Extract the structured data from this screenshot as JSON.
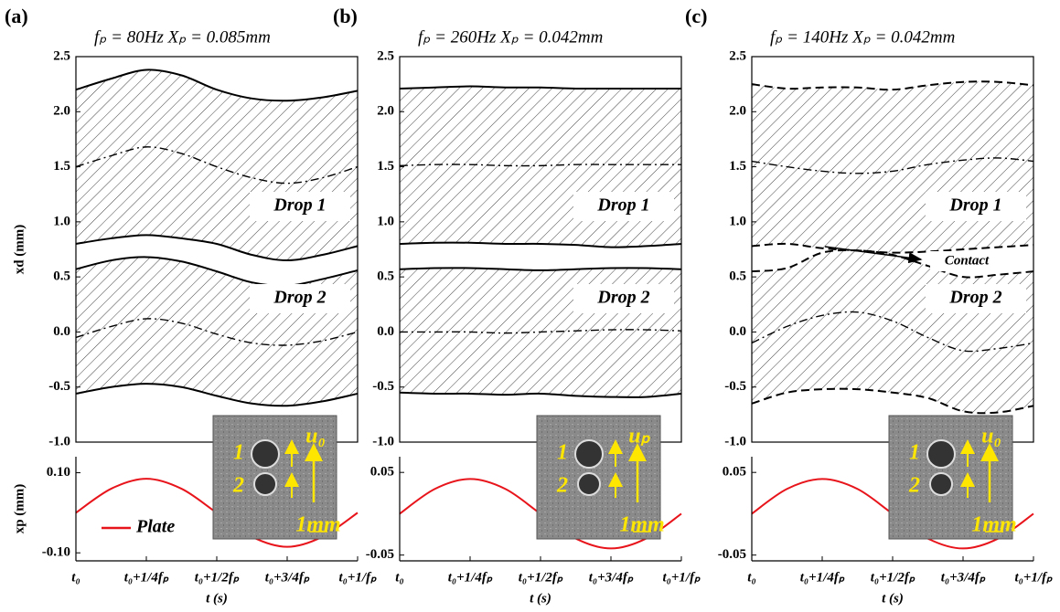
{
  "chart_data": [
    {
      "type": "line",
      "panel_label": "(a)",
      "title": "fₚ = 80Hz  Xₚ = 0.085mm",
      "y_label": "xd (mm)",
      "x": [
        0,
        0.125,
        0.25,
        0.375,
        0.5,
        0.625,
        0.75,
        0.875,
        1
      ],
      "xlim": [
        0,
        1
      ],
      "ylim": [
        -1,
        2.5
      ],
      "yticks": [
        {
          "value": -1,
          "label": "-1.0"
        },
        -0.5,
        {
          "value": 0,
          "label": "0.0"
        },
        0.5,
        {
          "value": 1,
          "label": "1.0"
        },
        1.5,
        {
          "value": 2,
          "label": "2.0"
        },
        2.5
      ],
      "hatch": true,
      "series": [
        {
          "color": "#000000",
          "style": "solid",
          "values": [
            2.2,
            2.3,
            2.38,
            2.33,
            2.2,
            2.12,
            2.1,
            2.13,
            2.19
          ]
        },
        {
          "color": "#000000",
          "style": "dashdot",
          "values": [
            1.5,
            1.6,
            1.68,
            1.62,
            1.5,
            1.4,
            1.35,
            1.4,
            1.5
          ]
        },
        {
          "color": "#000000",
          "style": "solid",
          "values": [
            0.8,
            0.85,
            0.88,
            0.85,
            0.8,
            0.7,
            0.65,
            0.7,
            0.78
          ]
        },
        {
          "color": "#000000",
          "style": "solid",
          "values": [
            0.57,
            0.65,
            0.68,
            0.64,
            0.55,
            0.45,
            0.42,
            0.48,
            0.56
          ]
        },
        {
          "color": "#000000",
          "style": "dashdot",
          "values": [
            -0.05,
            0.05,
            0.12,
            0.08,
            -0.02,
            -0.1,
            -0.12,
            -0.08,
            0.0
          ]
        },
        {
          "color": "#000000",
          "style": "solid",
          "values": [
            -0.56,
            -0.5,
            -0.47,
            -0.5,
            -0.58,
            -0.65,
            -0.67,
            -0.63,
            -0.56
          ]
        }
      ],
      "annotations": [
        "Drop 1",
        "Drop 2"
      ],
      "inset_labels": [
        "1",
        "2",
        "u₀",
        "1mm"
      ]
    },
    {
      "type": "line",
      "y_label": "xp (mm)",
      "x_label": "t (s)",
      "x": [
        0,
        0.125,
        0.25,
        0.375,
        0.5,
        0.625,
        0.75,
        0.875,
        1
      ],
      "xlim": [
        0,
        1
      ],
      "ylim": [
        -0.12,
        0.14
      ],
      "yticks": [
        {
          "value": 0.1,
          "label": "0.10"
        },
        {
          "value": -0.1,
          "label": "-0.10"
        }
      ],
      "xticks": [
        {
          "value": 0,
          "label": "t₀"
        },
        {
          "value": 0.25,
          "label": "t₀+1/4fₚ"
        },
        {
          "value": 0.5,
          "label": "t₀+1/2fₚ"
        },
        {
          "value": 0.75,
          "label": "t₀+3/4fₚ"
        },
        {
          "value": 1,
          "label": "t₀+1/fₚ"
        }
      ],
      "legend": true,
      "series": [
        {
          "name": "Plate",
          "color": "#e8141b",
          "style": "solid",
          "values": [
            0,
            0.06,
            0.085,
            0.06,
            0,
            -0.06,
            -0.085,
            -0.06,
            0
          ]
        }
      ]
    },
    {
      "type": "line",
      "panel_label": "(b)",
      "title": "fₚ = 260Hz  Xₚ = 0.042mm",
      "x": [
        0,
        0.125,
        0.25,
        0.375,
        0.5,
        0.625,
        0.75,
        0.875,
        1
      ],
      "xlim": [
        0,
        1
      ],
      "ylim": [
        -1,
        2.5
      ],
      "yticks": [
        {
          "value": -1,
          "label": "-1.0"
        },
        -0.5,
        {
          "value": 0,
          "label": "0.0"
        },
        0.5,
        {
          "value": 1,
          "label": "1.0"
        },
        1.5,
        {
          "value": 2,
          "label": "2.0"
        },
        2.5
      ],
      "hatch": true,
      "series": [
        {
          "color": "#000000",
          "style": "solid",
          "values": [
            2.21,
            2.22,
            2.23,
            2.22,
            2.22,
            2.21,
            2.21,
            2.21,
            2.21
          ]
        },
        {
          "color": "#000000",
          "style": "dashdot",
          "values": [
            1.51,
            1.52,
            1.52,
            1.51,
            1.51,
            1.52,
            1.52,
            1.52,
            1.52
          ]
        },
        {
          "color": "#000000",
          "style": "solid",
          "values": [
            0.8,
            0.81,
            0.81,
            0.8,
            0.8,
            0.79,
            0.77,
            0.78,
            0.8
          ]
        },
        {
          "color": "#000000",
          "style": "solid",
          "values": [
            0.57,
            0.58,
            0.58,
            0.57,
            0.56,
            0.57,
            0.58,
            0.58,
            0.57
          ]
        },
        {
          "color": "#000000",
          "style": "dashdot",
          "values": [
            0,
            0,
            0,
            -0.01,
            0,
            0.01,
            0.02,
            0.02,
            0.01
          ]
        },
        {
          "color": "#000000",
          "style": "solid",
          "values": [
            -0.55,
            -0.56,
            -0.56,
            -0.57,
            -0.56,
            -0.58,
            -0.59,
            -0.59,
            -0.56
          ]
        }
      ],
      "annotations": [
        "Drop 1",
        "Drop 2"
      ],
      "inset_labels": [
        "1",
        "2",
        "uₚ",
        "1mm"
      ]
    },
    {
      "type": "line",
      "x_label": "t (s)",
      "x": [
        0,
        0.125,
        0.25,
        0.375,
        0.5,
        0.625,
        0.75,
        0.875,
        1
      ],
      "xlim": [
        0,
        1
      ],
      "ylim": [
        -0.057,
        0.069
      ],
      "yticks": [
        {
          "value": 0.05,
          "label": "0.05"
        },
        {
          "value": -0.05,
          "label": "-0.05"
        }
      ],
      "xticks": [
        {
          "value": 0,
          "label": "t₀"
        },
        {
          "value": 0.25,
          "label": "t₀+1/4fₚ"
        },
        {
          "value": 0.5,
          "label": "t₀+1/2fₚ"
        },
        {
          "value": 0.75,
          "label": "t₀+3/4fₚ"
        },
        {
          "value": 1,
          "label": "t₀+1/fₚ"
        }
      ],
      "legend": false,
      "series": [
        {
          "color": "#e8141b",
          "style": "solid",
          "values": [
            0,
            0.03,
            0.042,
            0.03,
            0,
            -0.03,
            -0.042,
            -0.03,
            0
          ]
        }
      ]
    },
    {
      "type": "line",
      "panel_label": "(c)",
      "title": "fₚ = 140Hz  Xₚ = 0.042mm",
      "x": [
        0,
        0.125,
        0.25,
        0.375,
        0.5,
        0.625,
        0.75,
        0.875,
        1
      ],
      "xlim": [
        0,
        1
      ],
      "ylim": [
        -1,
        2.5
      ],
      "yticks": [
        {
          "value": -1,
          "label": "-1.0"
        },
        -0.5,
        {
          "value": 0,
          "label": "0.0"
        },
        0.5,
        {
          "value": 1,
          "label": "1.0"
        },
        1.5,
        {
          "value": 2,
          "label": "2.0"
        },
        2.5
      ],
      "hatch": true,
      "series": [
        {
          "color": "#000000",
          "style": "dashed",
          "values": [
            2.25,
            2.21,
            2.22,
            2.22,
            2.2,
            2.24,
            2.27,
            2.27,
            2.24
          ]
        },
        {
          "color": "#000000",
          "style": "dashdot",
          "values": [
            1.55,
            1.5,
            1.46,
            1.44,
            1.46,
            1.52,
            1.56,
            1.58,
            1.55
          ]
        },
        {
          "color": "#000000",
          "style": "dashed",
          "values": [
            0.78,
            0.8,
            0.76,
            0.74,
            0.72,
            0.73,
            0.75,
            0.77,
            0.79
          ]
        },
        {
          "color": "#000000",
          "style": "dashed",
          "values": [
            0.55,
            0.58,
            0.72,
            0.74,
            0.7,
            0.6,
            0.5,
            0.52,
            0.55
          ]
        },
        {
          "color": "#000000",
          "style": "dashdot",
          "values": [
            -0.1,
            0.05,
            0.15,
            0.18,
            0.1,
            -0.05,
            -0.17,
            -0.15,
            -0.1
          ]
        },
        {
          "color": "#000000",
          "style": "dashed",
          "values": [
            -0.65,
            -0.55,
            -0.52,
            -0.52,
            -0.55,
            -0.6,
            -0.72,
            -0.73,
            -0.67
          ]
        }
      ],
      "annotations": [
        "Drop 1",
        "Drop 2",
        "Contact"
      ],
      "inset_labels": [
        "1",
        "2",
        "u₀",
        "1mm"
      ]
    },
    {
      "type": "line",
      "x_label": "t (s)",
      "x": [
        0,
        0.125,
        0.25,
        0.375,
        0.5,
        0.625,
        0.75,
        0.875,
        1
      ],
      "xlim": [
        0,
        1
      ],
      "ylim": [
        -0.057,
        0.069
      ],
      "yticks": [
        {
          "value": 0.05,
          "label": "0.05"
        },
        {
          "value": -0.05,
          "label": "-0.05"
        }
      ],
      "xticks": [
        {
          "value": 0,
          "label": "t₀"
        },
        {
          "value": 0.25,
          "label": "t₀+1/4fₚ"
        },
        {
          "value": 0.5,
          "label": "t₀+1/2fₚ"
        },
        {
          "value": 0.75,
          "label": "t₀+3/4fₚ"
        },
        {
          "value": 1,
          "label": "t₀+1/fₚ"
        }
      ],
      "legend": false,
      "series": [
        {
          "color": "#e8141b",
          "style": "solid",
          "values": [
            0,
            0.03,
            0.042,
            0.03,
            0,
            -0.03,
            -0.042,
            -0.03,
            0
          ]
        }
      ]
    }
  ]
}
